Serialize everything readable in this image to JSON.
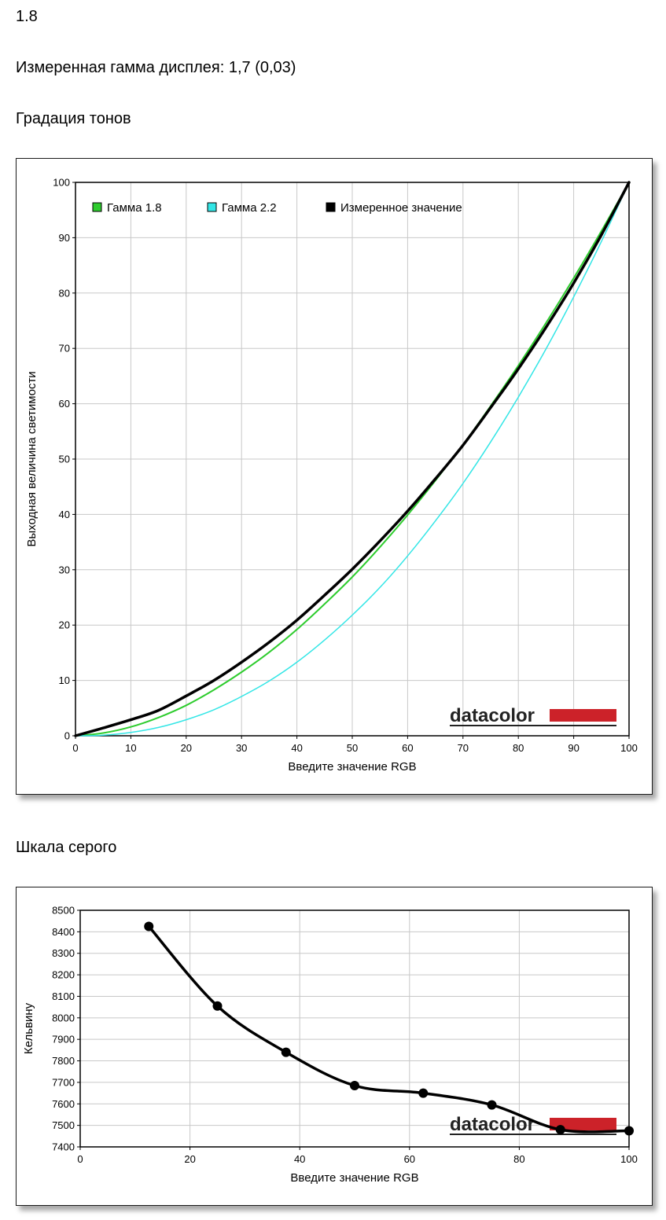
{
  "header": {
    "top_value": "1.8",
    "measured_gamma": "Измеренная гамма дисплея: 1,7 (0,03)",
    "section1_title": "Градация тонов",
    "section2_title": "Шкала серого"
  },
  "logo": {
    "text": "datacolor",
    "bar_color": "#cc2229"
  },
  "chart_data": [
    {
      "type": "line",
      "xlabel": "Введите значение RGB",
      "ylabel": "Выходная величина светимости",
      "xlim": [
        0,
        100
      ],
      "ylim": [
        0,
        100
      ],
      "x_ticks": [
        0,
        10,
        20,
        30,
        40,
        50,
        60,
        70,
        80,
        90,
        100
      ],
      "y_ticks": [
        0,
        10,
        20,
        30,
        40,
        50,
        60,
        70,
        80,
        90,
        100
      ],
      "grid": true,
      "legend_placement": "top-left",
      "series": [
        {
          "name": "Гамма 1.8",
          "color": "#2ecc2e",
          "x": [
            0,
            5,
            10,
            15,
            20,
            25,
            30,
            35,
            40,
            45,
            50,
            55,
            60,
            65,
            70,
            75,
            80,
            85,
            90,
            95,
            100
          ],
          "y": [
            0,
            0.5,
            1.6,
            3.3,
            5.5,
            8.3,
            11.5,
            15.1,
            19.2,
            23.8,
            28.7,
            34.1,
            39.9,
            46.1,
            52.6,
            59.6,
            66.9,
            74.6,
            82.7,
            91.2,
            100
          ]
        },
        {
          "name": "Гамма 2.2",
          "color": "#33e6e6",
          "x": [
            0,
            5,
            10,
            15,
            20,
            25,
            30,
            35,
            40,
            45,
            50,
            55,
            60,
            65,
            70,
            75,
            80,
            85,
            90,
            95,
            100
          ],
          "y": [
            0,
            0.1,
            0.6,
            1.5,
            2.9,
            4.7,
            7.1,
            9.9,
            13.3,
            17.3,
            21.8,
            26.8,
            32.5,
            38.8,
            45.6,
            53.1,
            61.2,
            69.9,
            79.3,
            89.3,
            100
          ]
        },
        {
          "name": "Измеренное значение",
          "color": "#000000",
          "x": [
            0,
            5,
            10,
            15,
            20,
            25,
            30,
            35,
            40,
            45,
            50,
            55,
            60,
            65,
            70,
            75,
            80,
            85,
            90,
            95,
            100
          ],
          "y": [
            0,
            1.4,
            2.9,
            4.6,
            7.2,
            10.0,
            13.3,
            16.9,
            20.9,
            25.4,
            30.1,
            35.2,
            40.6,
            46.4,
            52.5,
            59.3,
            66.3,
            73.8,
            81.8,
            90.5,
            100
          ]
        }
      ]
    },
    {
      "type": "line",
      "xlabel": "Введите значение RGB",
      "ylabel": "Кельвину",
      "xlim": [
        0,
        100
      ],
      "ylim": [
        7400,
        8500
      ],
      "x_ticks": [
        0,
        20,
        40,
        60,
        80,
        100
      ],
      "y_ticks": [
        7400,
        7500,
        7600,
        7700,
        7800,
        7900,
        8000,
        8100,
        8200,
        8300,
        8400,
        8500
      ],
      "grid": true,
      "series": [
        {
          "color": "#000000",
          "x": [
            12.5,
            25,
            37.5,
            50,
            62.5,
            75,
            87.5,
            100
          ],
          "y": [
            8425,
            8055,
            7840,
            7685,
            7650,
            7595,
            7480,
            7475
          ]
        }
      ]
    }
  ]
}
